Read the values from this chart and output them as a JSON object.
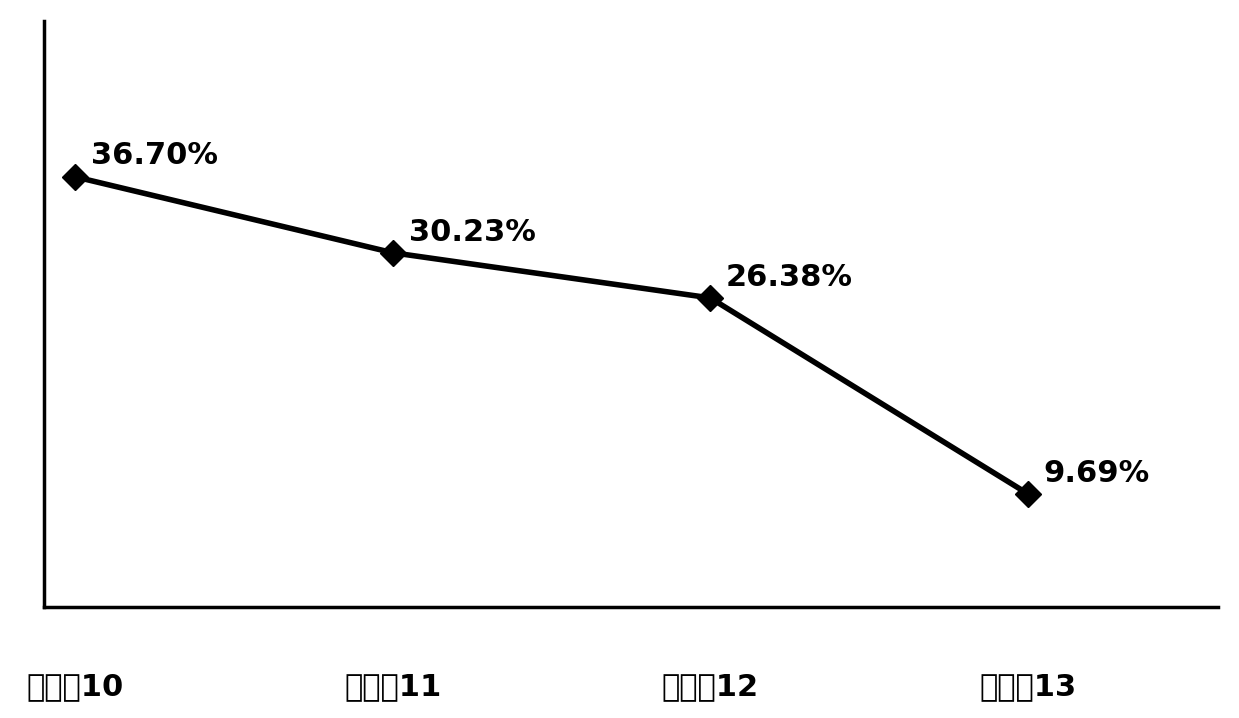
{
  "categories": [
    "实施例10",
    "实施例11",
    "实施例12",
    "实施例13"
  ],
  "values": [
    36.7,
    30.23,
    26.38,
    9.69
  ],
  "labels": [
    "36.70%",
    "30.23%",
    "26.38%",
    "9.69%"
  ],
  "line_color": "#000000",
  "marker_color": "#000000",
  "background_color": "#ffffff",
  "line_width": 4.0,
  "marker_size": 13,
  "xlabel_fontsize": 22,
  "label_fontsize": 22,
  "ylim": [
    0,
    50
  ],
  "xlim": [
    -0.1,
    3.6
  ],
  "spine_linewidth": 2.5
}
